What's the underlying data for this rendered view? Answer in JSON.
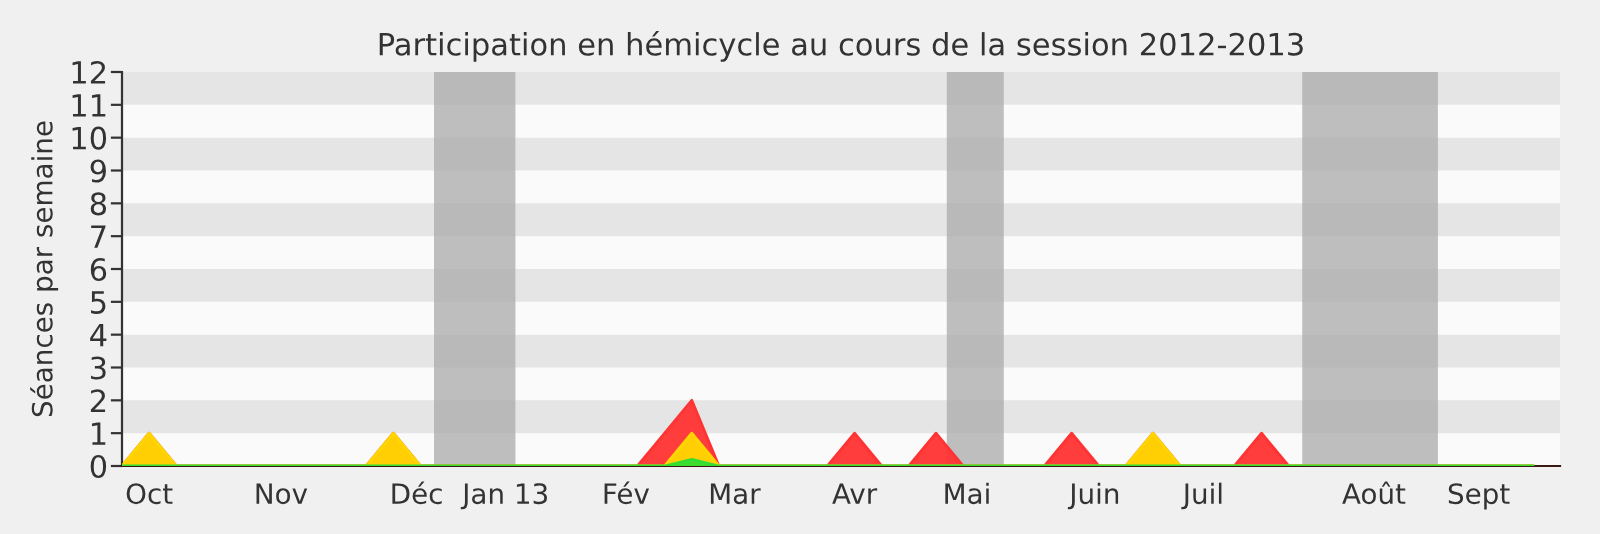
{
  "chart_data": {
    "type": "area",
    "title": "Participation en hémicycle au cours de la session 2012-2013",
    "ylabel": "Séances par semaine",
    "x": [
      "2012-09-24",
      "2012-10-01",
      "2012-10-08",
      "2012-10-15",
      "2012-10-22",
      "2012-10-29",
      "2012-11-05",
      "2012-11-12",
      "2012-11-19",
      "2012-11-26",
      "2012-12-03",
      "2012-12-10",
      "2012-12-17",
      "2012-12-24",
      "2012-12-31",
      "2013-01-07",
      "2013-01-14",
      "2013-01-21",
      "2013-01-28",
      "2013-02-04",
      "2013-02-11",
      "2013-02-18",
      "2013-02-25",
      "2013-03-04",
      "2013-03-11",
      "2013-03-18",
      "2013-03-25",
      "2013-04-01",
      "2013-04-08",
      "2013-04-15",
      "2013-04-22",
      "2013-04-29",
      "2013-05-06",
      "2013-05-13",
      "2013-05-20",
      "2013-05-27",
      "2013-06-03",
      "2013-06-10",
      "2013-06-17",
      "2013-06-24",
      "2013-07-01",
      "2013-07-08",
      "2013-07-15",
      "2013-07-22",
      "2013-07-29",
      "2013-08-05",
      "2013-08-12",
      "2013-08-19",
      "2013-08-26",
      "2013-09-02",
      "2013-09-09",
      "2013-09-16",
      "2013-09-23"
    ],
    "series": [
      {
        "color": "#ff3333",
        "values": [
          0,
          1,
          0,
          0,
          0,
          0,
          0,
          0,
          0,
          0,
          1,
          0,
          0,
          0,
          0,
          0,
          0,
          0,
          0,
          0,
          1,
          2,
          0,
          0,
          0,
          0,
          0,
          1,
          0,
          0,
          1,
          0,
          0,
          0,
          0,
          1,
          0,
          0,
          1,
          0,
          0,
          0,
          1,
          0,
          0,
          0,
          0,
          0,
          0,
          0,
          0,
          0,
          0
        ]
      },
      {
        "color": "#ffd700",
        "values": [
          0,
          1,
          0,
          0,
          0,
          0,
          0,
          0,
          0,
          0,
          1,
          0,
          0,
          0,
          0,
          0,
          0,
          0,
          0,
          0,
          0,
          1,
          0,
          0,
          0,
          0,
          0,
          0,
          0,
          0,
          0,
          0,
          0,
          0,
          0,
          0,
          0,
          0,
          1,
          0,
          0,
          0,
          0,
          0,
          0,
          0,
          0,
          0,
          0,
          0,
          0,
          0,
          0
        ]
      },
      {
        "color": "#33dd33",
        "values": [
          0,
          0,
          0,
          0,
          0,
          0,
          0,
          0,
          0,
          0,
          0,
          0,
          0,
          0,
          0,
          0,
          0,
          0,
          0,
          0,
          0,
          0.2,
          0,
          0,
          0,
          0,
          0,
          0,
          0,
          0,
          0,
          0,
          0,
          0,
          0,
          0,
          0,
          0,
          0,
          0,
          0,
          0,
          0,
          0,
          0,
          0,
          0,
          0,
          0,
          0,
          0,
          0,
          0
        ]
      }
    ],
    "xlim": [
      "2012-09-24",
      "2013-09-30"
    ],
    "xticks": [
      {
        "value": "2012-10-01",
        "label": "Oct"
      },
      {
        "value": "2012-11-04",
        "label": "Nov"
      },
      {
        "value": "2012-12-09",
        "label": "Déc"
      },
      {
        "value": "2013-01-01",
        "label": "Jan 13"
      },
      {
        "value": "2013-02-01",
        "label": "Fév"
      },
      {
        "value": "2013-03-01",
        "label": "Mar"
      },
      {
        "value": "2013-04-01",
        "label": "Avr"
      },
      {
        "value": "2013-04-30",
        "label": "Mai"
      },
      {
        "value": "2013-06-02",
        "label": "Juin"
      },
      {
        "value": "2013-06-30",
        "label": "Juil"
      },
      {
        "value": "2013-08-13",
        "label": "Août"
      },
      {
        "value": "2013-09-09",
        "label": "Sept"
      }
    ],
    "ylim": [
      0,
      12
    ],
    "yticks": [
      0,
      1,
      2,
      3,
      4,
      5,
      6,
      7,
      8,
      9,
      10,
      11,
      12
    ],
    "bands": [
      {
        "axis": "x",
        "from": "2012-12-13T12:00",
        "to": "2013-01-03T12:00",
        "color": "#aaaaaa"
      },
      {
        "axis": "x",
        "from": "2013-04-24T19:00",
        "to": "2013-05-09T12:00",
        "color": "#aaaaaa"
      },
      {
        "axis": "x",
        "from": "2013-07-25T12:00",
        "to": "2013-08-29T12:00",
        "color": "#aaaaaa"
      }
    ],
    "legend": false
  }
}
